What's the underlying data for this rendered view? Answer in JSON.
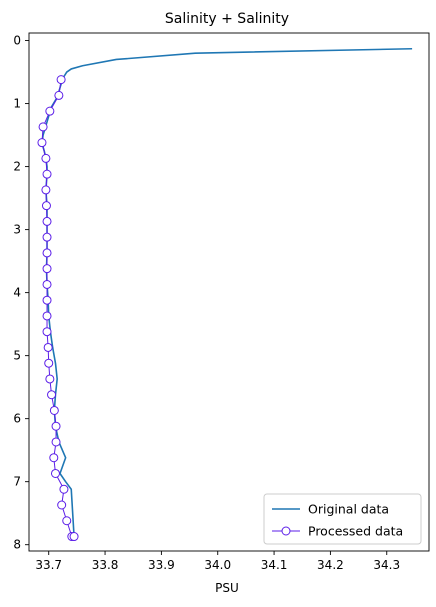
{
  "chart_data": {
    "type": "line",
    "title": "Salinity + Salinity",
    "xlabel": "PSU",
    "ylabel": "",
    "xlim": [
      33.665,
      34.375
    ],
    "ylim": [
      8.1,
      -0.12
    ],
    "y_inverted": true,
    "x_ticks": [
      "33.7",
      "33.8",
      "33.9",
      "34.0",
      "34.1",
      "34.2",
      "34.3"
    ],
    "x_tick_values": [
      33.7,
      33.8,
      33.9,
      34.0,
      34.1,
      34.2,
      34.3
    ],
    "y_ticks": [
      "0",
      "1",
      "2",
      "3",
      "4",
      "5",
      "6",
      "7",
      "8"
    ],
    "y_tick_values": [
      0,
      1,
      2,
      3,
      4,
      5,
      6,
      7,
      8
    ],
    "grid": false,
    "legend_position": "lower-right",
    "series": [
      {
        "name": "Original data",
        "color": "#1f77b4",
        "marker": "none",
        "x": [
          34.345,
          33.96,
          33.82,
          33.76,
          33.74,
          33.732,
          33.725,
          33.72,
          33.715,
          33.705,
          33.7,
          33.695,
          33.69,
          33.688,
          33.692,
          33.695,
          33.697,
          33.697,
          33.696,
          33.695,
          33.696,
          33.697,
          33.697,
          33.697,
          33.697,
          33.697,
          33.697,
          33.696,
          33.697,
          33.699,
          33.7,
          33.703,
          33.707,
          33.712,
          33.715,
          33.712,
          33.71,
          33.712,
          33.718,
          33.73,
          33.72,
          33.73,
          33.74,
          33.745
        ],
        "y": [
          0.13,
          0.2,
          0.3,
          0.4,
          0.45,
          0.5,
          0.6,
          0.75,
          0.9,
          1.05,
          1.2,
          1.35,
          1.5,
          1.63,
          1.75,
          1.87,
          2.0,
          2.12,
          2.25,
          2.37,
          2.5,
          2.62,
          2.75,
          2.87,
          3.0,
          3.12,
          3.37,
          3.62,
          3.87,
          4.12,
          4.37,
          4.62,
          4.87,
          5.12,
          5.37,
          5.62,
          5.87,
          6.12,
          6.37,
          6.62,
          6.87,
          7.0,
          7.12,
          7.87
        ]
      },
      {
        "name": "Processed data",
        "color": "#5b1de8",
        "marker": "o",
        "x": [
          33.722,
          33.718,
          33.702,
          33.69,
          33.688,
          33.695,
          33.697,
          33.695,
          33.696,
          33.697,
          33.697,
          33.697,
          33.697,
          33.697,
          33.697,
          33.697,
          33.697,
          33.699,
          33.7,
          33.702,
          33.705,
          33.71,
          33.713,
          33.713,
          33.709,
          33.712,
          33.727,
          33.723,
          33.732,
          33.741,
          33.745
        ],
        "y": [
          0.62,
          0.87,
          1.12,
          1.37,
          1.62,
          1.87,
          2.12,
          2.37,
          2.62,
          2.87,
          3.12,
          3.37,
          3.62,
          3.87,
          4.12,
          4.37,
          4.62,
          4.87,
          5.12,
          5.37,
          5.62,
          5.87,
          6.12,
          6.37,
          6.62,
          6.87,
          7.12,
          7.37,
          7.62,
          7.87,
          7.87
        ]
      }
    ]
  }
}
